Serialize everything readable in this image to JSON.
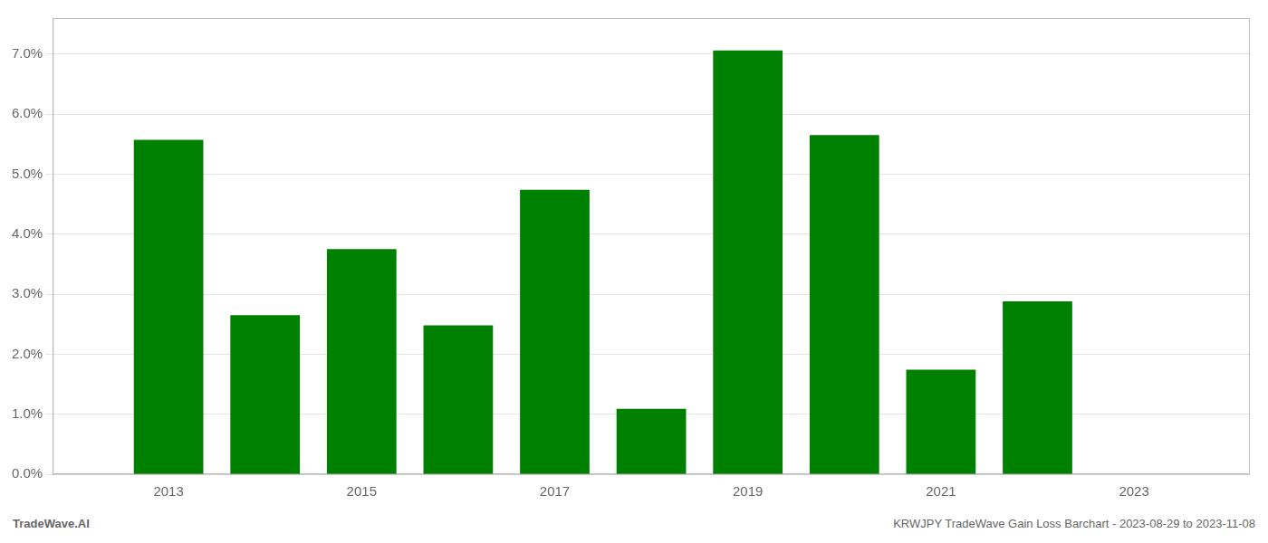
{
  "chart_data": {
    "type": "bar",
    "x": [
      2013,
      2014,
      2015,
      2016,
      2017,
      2018,
      2019,
      2020,
      2021,
      2022
    ],
    "values": [
      0.0557,
      0.0265,
      0.0375,
      0.0248,
      0.0474,
      0.0109,
      0.0706,
      0.0565,
      0.0174,
      0.0288
    ],
    "color": "#008000",
    "xlim": [
      2011.8,
      2024.2
    ],
    "xticks": [
      2013,
      2015,
      2017,
      2019,
      2021,
      2023
    ],
    "ylim": [
      0.0,
      0.076
    ],
    "yticks": [
      {
        "value": 0.0,
        "label": "0.0%"
      },
      {
        "value": 0.01,
        "label": "1.0%"
      },
      {
        "value": 0.02,
        "label": "2.0%"
      },
      {
        "value": 0.03,
        "label": "3.0%"
      },
      {
        "value": 0.04,
        "label": "4.0%"
      },
      {
        "value": 0.05,
        "label": "5.0%"
      },
      {
        "value": 0.06,
        "label": "6.0%"
      },
      {
        "value": 0.07,
        "label": "7.0%"
      }
    ],
    "grid": true,
    "annotations": [
      {
        "text": "TradeWave.AI"
      },
      {
        "text": "KRWJPY TradeWave Gain Loss Barchart - 2023-08-29 to 2023-11-08"
      }
    ]
  }
}
